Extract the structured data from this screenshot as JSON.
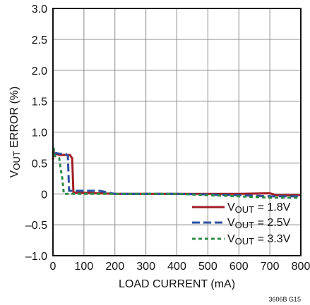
{
  "chart_data": {
    "type": "line",
    "title": "",
    "xlabel": "LOAD CURRENT (mA)",
    "ylabel_parts": [
      {
        "text": "V",
        "kind": "base"
      },
      {
        "text": "OUT",
        "kind": "sub"
      },
      {
        "text": " ERROR (%)",
        "kind": "base"
      }
    ],
    "xlim": [
      0,
      800
    ],
    "ylim": [
      -1.0,
      3.0
    ],
    "x_ticks": [
      0,
      100,
      200,
      300,
      400,
      500,
      600,
      700,
      800
    ],
    "x_tick_labels": [
      "0",
      "100",
      "200",
      "300",
      "400",
      "500",
      "600",
      "700",
      "800"
    ],
    "y_ticks": [
      3.0,
      2.5,
      2.0,
      1.5,
      1.0,
      0.5,
      0,
      -0.5,
      -1.0
    ],
    "y_tick_labels": [
      "3.0",
      "2.5",
      "2.0",
      "1.5",
      "1.0",
      "0.5",
      "0",
      "–0.5",
      "–1.0"
    ],
    "grid": true,
    "legend_position": "bottom-right",
    "caption": "3606B G15",
    "series": [
      {
        "key": "1p8",
        "label_parts": [
          {
            "text": "V",
            "kind": "base"
          },
          {
            "text": "OUT",
            "kind": "sub"
          },
          {
            "text": " = 1.8V",
            "kind": "base"
          }
        ],
        "color": "#a01e23",
        "dash": "solid",
        "x": [
          0,
          2,
          5,
          10,
          20,
          40,
          55,
          60,
          62,
          66,
          80,
          150,
          200,
          400,
          600,
          700,
          720,
          800
        ],
        "y": [
          0.55,
          0.7,
          0.62,
          0.65,
          0.63,
          0.63,
          0.63,
          0.59,
          0.58,
          0.02,
          0.02,
          0.01,
          0.0,
          0.0,
          0.0,
          0.01,
          -0.02,
          -0.02
        ]
      },
      {
        "key": "2p5",
        "label_parts": [
          {
            "text": "V",
            "kind": "base"
          },
          {
            "text": "OUT",
            "kind": "sub"
          },
          {
            "text": " = 2.5V",
            "kind": "base"
          }
        ],
        "color": "#2a4f9f",
        "dash": "long",
        "x": [
          0,
          2,
          5,
          10,
          20,
          40,
          48,
          52,
          60,
          80,
          150,
          180,
          200,
          400,
          600,
          650,
          700,
          800
        ],
        "y": [
          0.62,
          0.72,
          0.64,
          0.66,
          0.65,
          0.65,
          0.62,
          0.05,
          0.05,
          0.05,
          0.05,
          0.02,
          0.0,
          0.0,
          -0.02,
          -0.03,
          -0.04,
          -0.04
        ]
      },
      {
        "key": "3p3",
        "label_parts": [
          {
            "text": "V",
            "kind": "base"
          },
          {
            "text": "OUT",
            "kind": "sub"
          },
          {
            "text": " = 3.3V",
            "kind": "base"
          }
        ],
        "color": "#2e8b46",
        "dash": "short",
        "x": [
          0,
          2,
          5,
          10,
          20,
          25,
          30,
          35,
          50,
          100,
          200,
          400,
          500,
          600,
          700,
          800
        ],
        "y": [
          0.65,
          0.75,
          0.62,
          0.6,
          0.58,
          0.4,
          0.25,
          0.0,
          0.0,
          0.0,
          0.0,
          0.0,
          -0.02,
          -0.04,
          -0.06,
          -0.06
        ]
      }
    ]
  }
}
